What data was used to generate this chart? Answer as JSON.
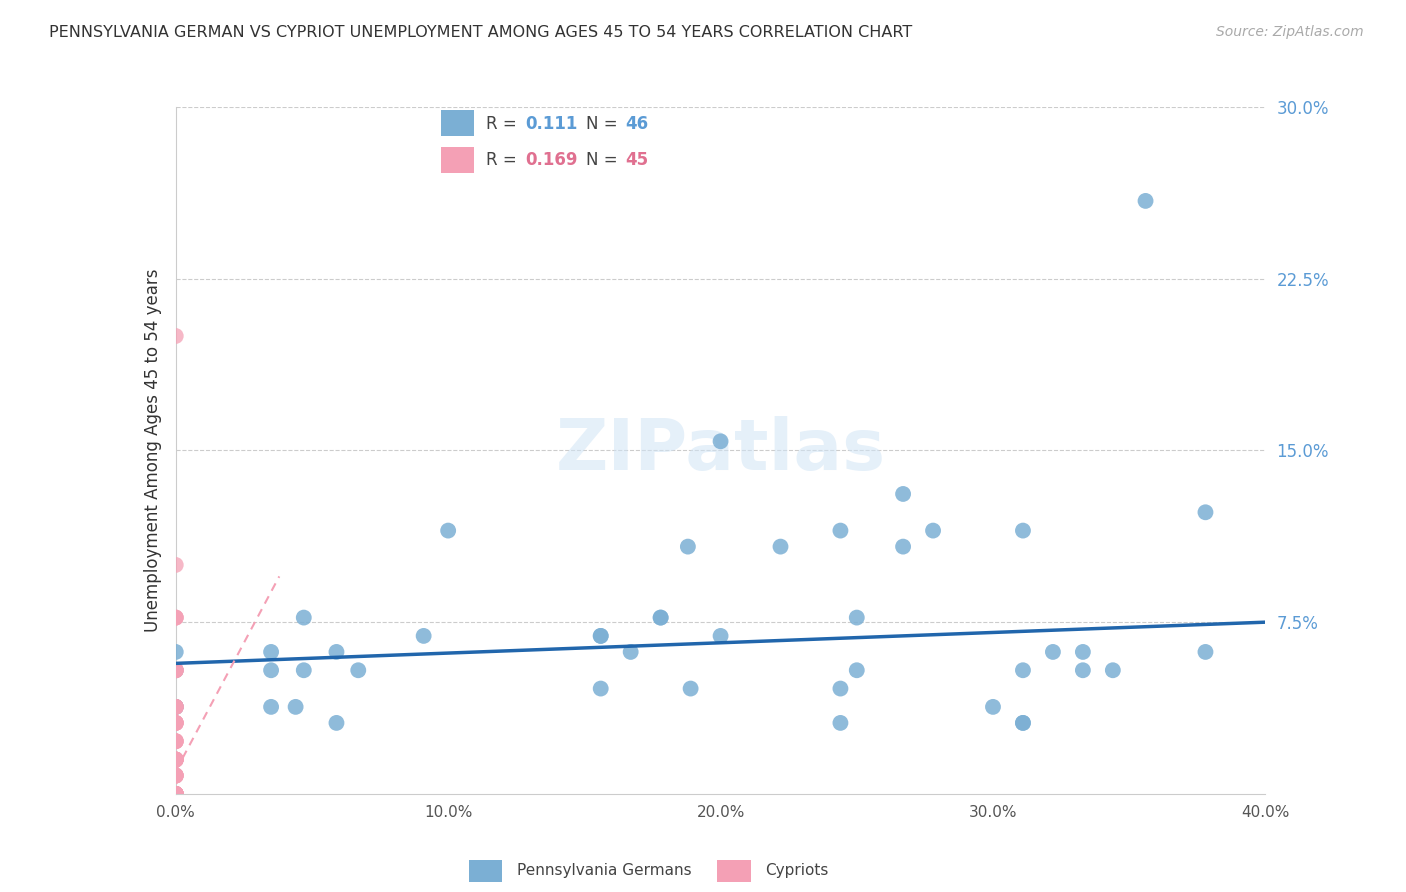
{
  "title": "PENNSYLVANIA GERMAN VS CYPRIOT UNEMPLOYMENT AMONG AGES 45 TO 54 YEARS CORRELATION CHART",
  "source": "Source: ZipAtlas.com",
  "ylabel": "Unemployment Among Ages 45 to 54 years",
  "xlim": [
    0.0,
    0.4
  ],
  "ylim": [
    0.0,
    0.3
  ],
  "yticks": [
    0.075,
    0.15,
    0.225,
    0.3
  ],
  "ytick_labels": [
    "7.5%",
    "15.0%",
    "22.5%",
    "30.0%"
  ],
  "xticks": [
    0.0,
    0.1,
    0.2,
    0.3,
    0.4
  ],
  "xtick_labels": [
    "0.0%",
    "10.0%",
    "20.0%",
    "30.0%",
    "40.0%"
  ],
  "legend_label1": "Pennsylvania Germans",
  "legend_label2": "Cypriots",
  "R1": "0.111",
  "N1": "46",
  "R2": "0.169",
  "N2": "45",
  "blue_color": "#7bafd4",
  "pink_color": "#f4a0b5",
  "blue_line_color": "#2166ac",
  "pink_line_color": "#f4a0b5",
  "watermark": "ZIPatlas",
  "blue_scatter_x": [
    0.356,
    0.0,
    0.047,
    0.035,
    0.047,
    0.035,
    0.059,
    0.091,
    0.067,
    0.059,
    0.1,
    0.035,
    0.188,
    0.222,
    0.25,
    0.178,
    0.25,
    0.267,
    0.311,
    0.244,
    0.156,
    0.322,
    0.333,
    0.0,
    0.0,
    0.0,
    0.178,
    0.311,
    0.2,
    0.244,
    0.378,
    0.311,
    0.189,
    0.3,
    0.278,
    0.156,
    0.167,
    0.044,
    0.244,
    0.2,
    0.267,
    0.378,
    0.344,
    0.311,
    0.333,
    0.156
  ],
  "blue_scatter_y": [
    0.259,
    0.062,
    0.054,
    0.062,
    0.077,
    0.054,
    0.031,
    0.069,
    0.054,
    0.062,
    0.115,
    0.038,
    0.108,
    0.108,
    0.054,
    0.077,
    0.077,
    0.108,
    0.115,
    0.115,
    0.046,
    0.062,
    0.054,
    0.038,
    0.054,
    0.038,
    0.077,
    0.054,
    0.069,
    0.031,
    0.062,
    0.031,
    0.046,
    0.038,
    0.115,
    0.069,
    0.062,
    0.038,
    0.046,
    0.154,
    0.131,
    0.123,
    0.054,
    0.031,
    0.062,
    0.069
  ],
  "pink_scatter_x": [
    0.0,
    0.0,
    0.0,
    0.0,
    0.0,
    0.0,
    0.0,
    0.0,
    0.0,
    0.0,
    0.0,
    0.0,
    0.0,
    0.0,
    0.0,
    0.0,
    0.0,
    0.0,
    0.0,
    0.0,
    0.0,
    0.0,
    0.0,
    0.0,
    0.0,
    0.0,
    0.0,
    0.0,
    0.0,
    0.0,
    0.0,
    0.0,
    0.0,
    0.0,
    0.0,
    0.0,
    0.0,
    0.0,
    0.0,
    0.0,
    0.0,
    0.0,
    0.0,
    0.0,
    0.0
  ],
  "pink_scatter_y": [
    0.2,
    0.1,
    0.077,
    0.077,
    0.077,
    0.054,
    0.054,
    0.054,
    0.054,
    0.038,
    0.038,
    0.038,
    0.038,
    0.031,
    0.031,
    0.031,
    0.031,
    0.031,
    0.023,
    0.023,
    0.023,
    0.023,
    0.015,
    0.015,
    0.015,
    0.015,
    0.015,
    0.015,
    0.015,
    0.008,
    0.008,
    0.008,
    0.008,
    0.008,
    0.0,
    0.0,
    0.0,
    0.0,
    0.0,
    0.0,
    0.0,
    0.0,
    0.0,
    0.0,
    0.0
  ],
  "blue_trend_x": [
    0.0,
    0.4
  ],
  "blue_trend_y": [
    0.057,
    0.075
  ],
  "pink_trend_x": [
    0.0,
    0.038
  ],
  "pink_trend_y": [
    0.01,
    0.095
  ],
  "grid_color": "#cccccc",
  "right_tick_color": "#5b9bd5",
  "pink_R_color": "#e07090",
  "blue_R_color": "#5b9bd5"
}
